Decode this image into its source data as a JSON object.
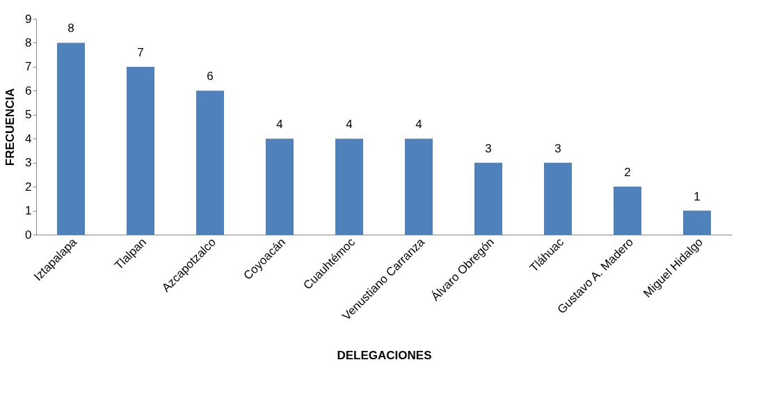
{
  "chart_data": {
    "type": "bar",
    "xlabel": "DELEGACIONES",
    "ylabel": "FRECUENCIA",
    "categories": [
      "Iztapalapa",
      "Tlalpan",
      "Azcapotzalco",
      "Coyoacán",
      "Cuauhtémoc",
      "Venustiano Carranza",
      "Álvaro Obregón",
      "Tláhuac",
      "Gustavo A. Madero",
      "Miguel Hidalgo"
    ],
    "values": [
      8,
      7,
      6,
      4,
      4,
      4,
      3,
      3,
      2,
      1
    ],
    "color": "#4f81bd",
    "ylim": [
      0,
      9
    ],
    "yticks": [
      0,
      1,
      2,
      3,
      4,
      5,
      6,
      7,
      8,
      9
    ],
    "grid": false,
    "data_labels": true
  }
}
